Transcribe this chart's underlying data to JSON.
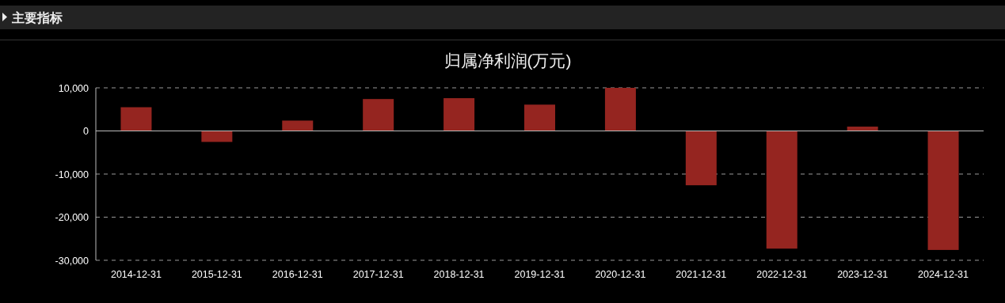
{
  "chart_data": {
    "type": "bar",
    "title": "归属净利润(万元)",
    "annotations": [
      "主要指标"
    ],
    "categories": [
      "2014-12-31",
      "2015-12-31",
      "2016-12-31",
      "2017-12-31",
      "2018-12-31",
      "2019-12-31",
      "2020-12-31",
      "2021-12-31",
      "2022-12-31",
      "2023-12-31",
      "2024-12-31"
    ],
    "values": [
      5500,
      -2550,
      2400,
      7400,
      7600,
      6100,
      10000,
      -12600,
      -27300,
      1000,
      -27600
    ],
    "color": "#952520",
    "ylim": [
      -30000,
      10000
    ],
    "yticks": [
      {
        "value": -30000,
        "label": "-30,000"
      },
      {
        "value": -20000,
        "label": "-20,000"
      },
      {
        "value": -10000,
        "label": "-10,000"
      },
      0,
      {
        "value": 10000,
        "label": "10,000"
      }
    ],
    "grid": "y"
  }
}
